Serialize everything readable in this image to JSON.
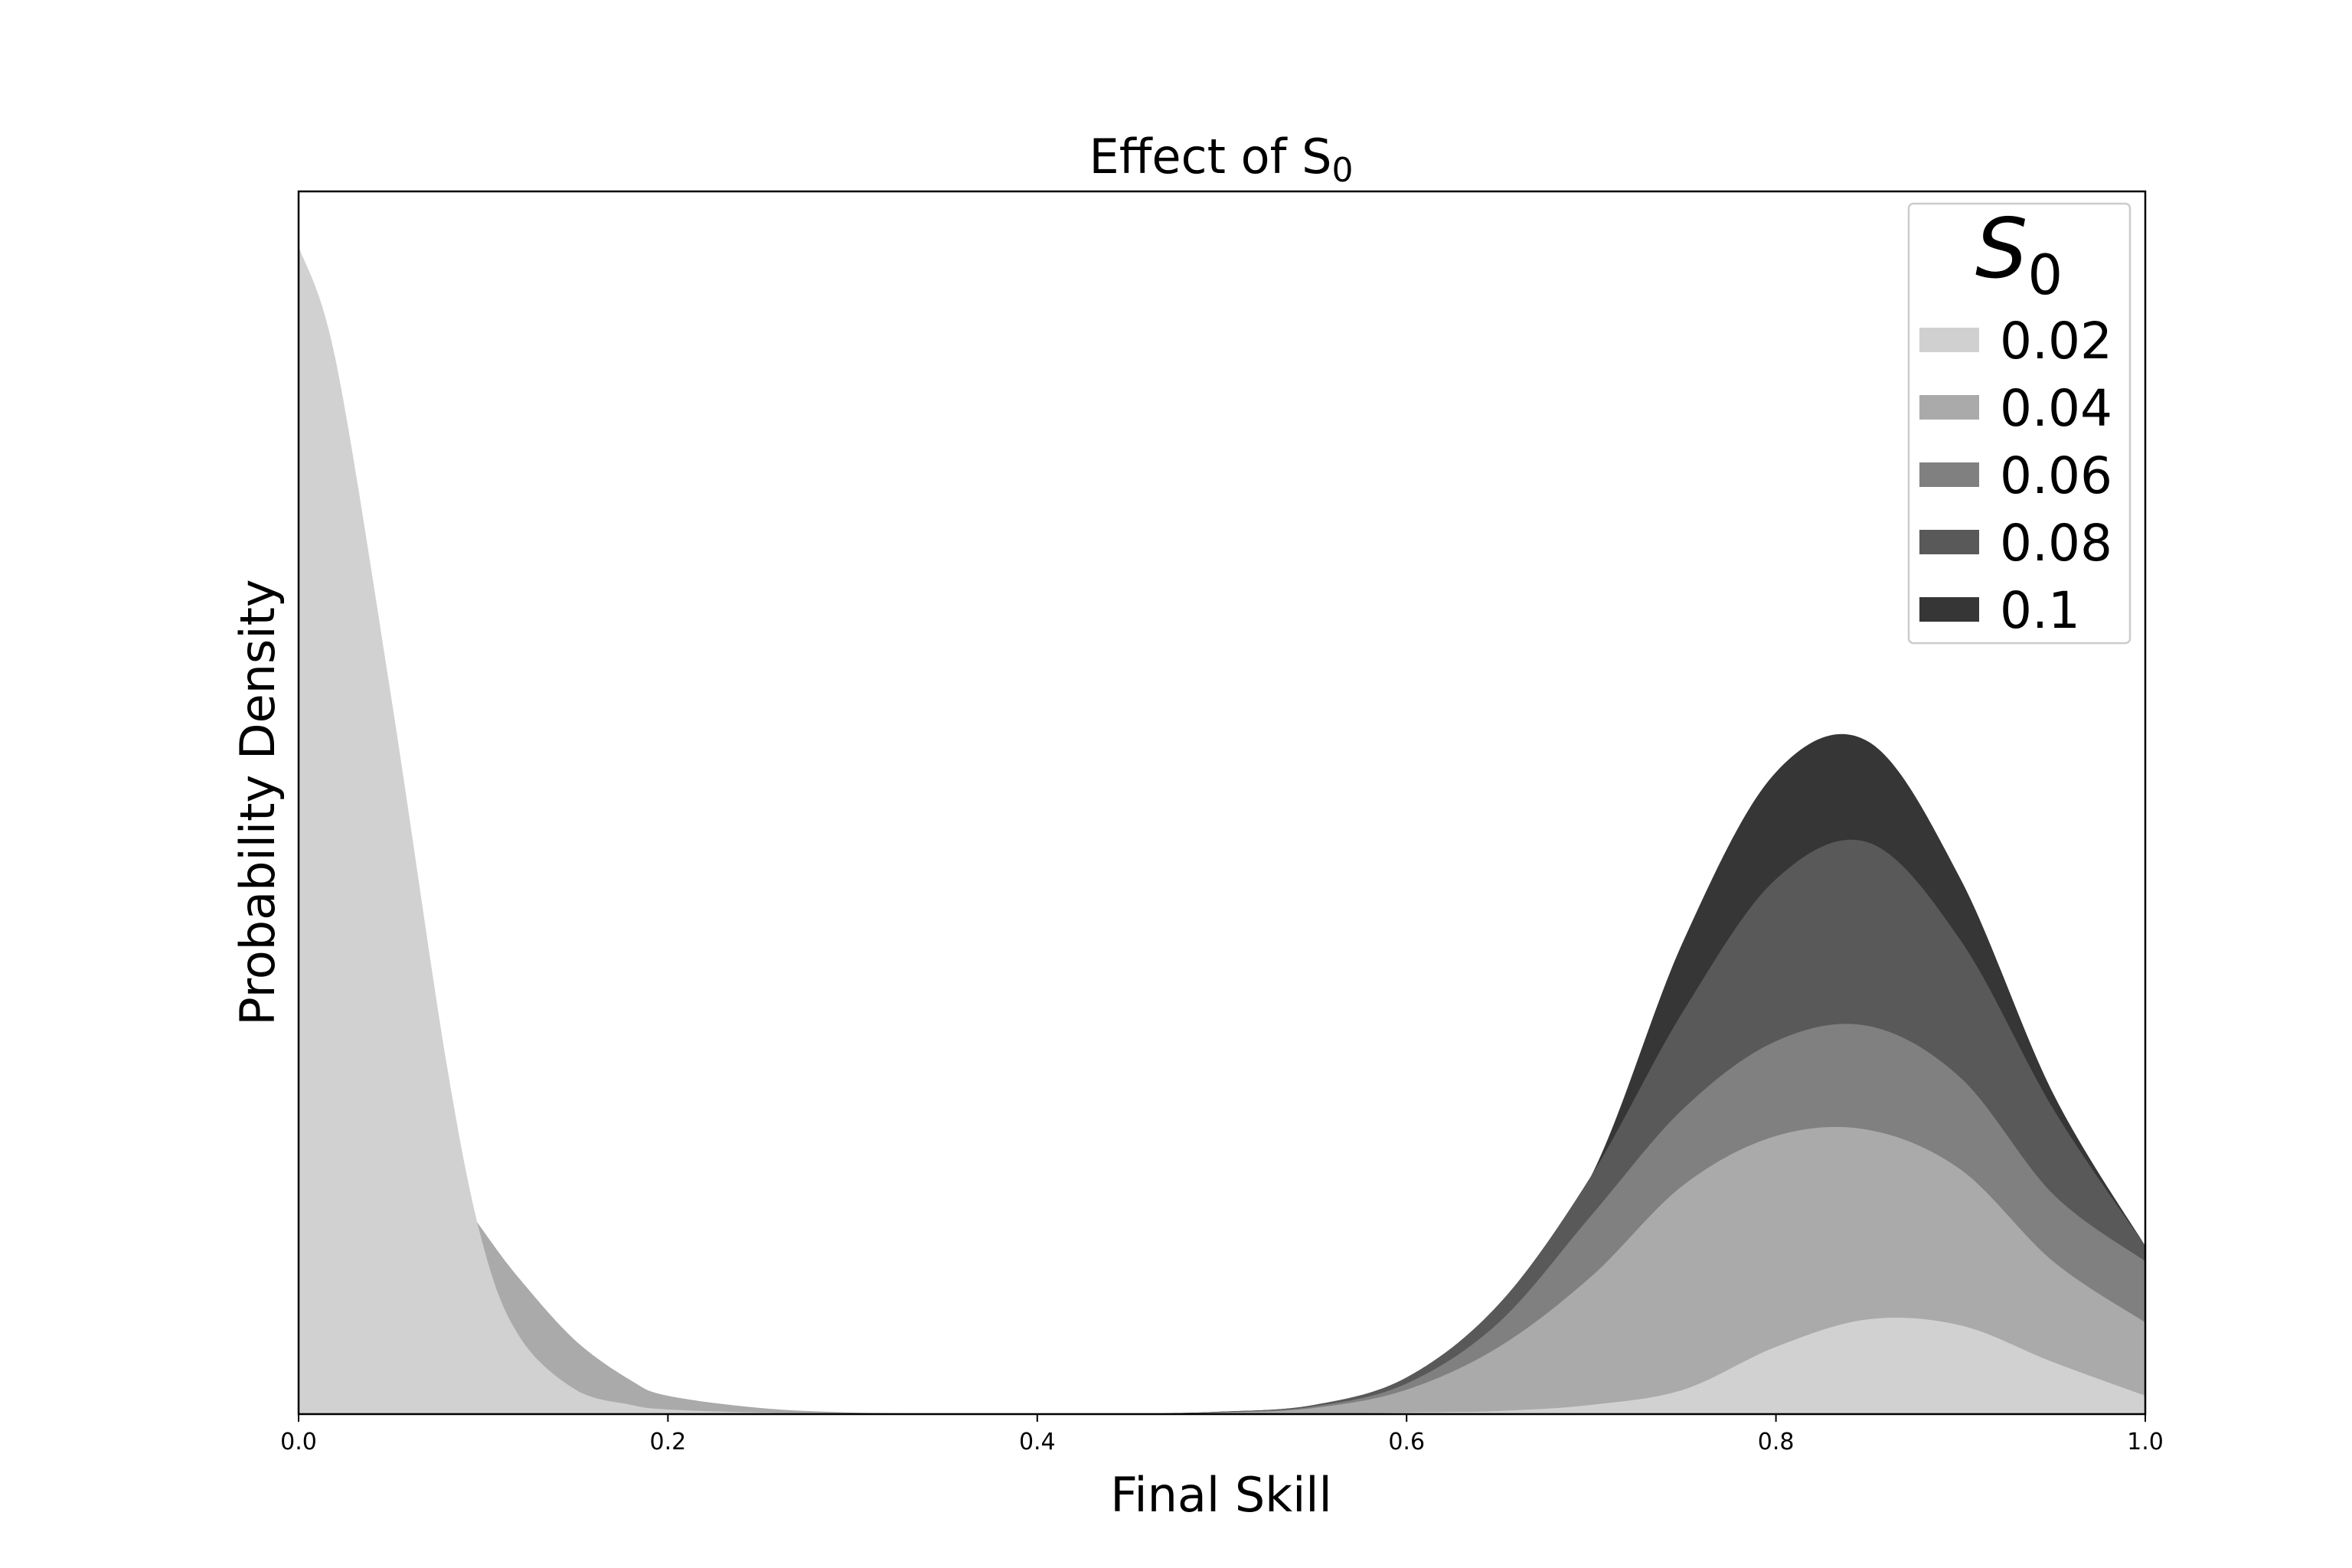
{
  "chart_data": {
    "type": "area",
    "title": "Effect of S",
    "title_subscript": "0",
    "xlabel": "Final Skill",
    "ylabel": "Probability Density",
    "xlim": [
      0.0,
      1.0
    ],
    "ylim": [
      0,
      4.0
    ],
    "x_ticks": [
      "0.0",
      "0.2",
      "0.4",
      "0.6",
      "0.8",
      "1.0"
    ],
    "y_ticks_visible": false,
    "grid": false,
    "legend": {
      "title": "S",
      "title_subscript": "0",
      "position": "top-right"
    },
    "x": [
      0.0,
      0.02,
      0.05,
      0.08,
      0.1,
      0.12,
      0.15,
      0.18,
      0.2,
      0.25,
      0.3,
      0.35,
      0.4,
      0.45,
      0.5,
      0.55,
      0.6,
      0.65,
      0.7,
      0.75,
      0.8,
      0.85,
      0.9,
      0.95,
      1.0
    ],
    "series": [
      {
        "name": "0.02",
        "color": "#d0d0d0",
        "values": [
          3.82,
          3.45,
          2.35,
          1.15,
          0.55,
          0.25,
          0.08,
          0.03,
          0.015,
          0.005,
          0.002,
          0.0,
          0.0,
          0.0,
          0.0,
          0.0,
          0.005,
          0.01,
          0.03,
          0.08,
          0.22,
          0.31,
          0.29,
          0.17,
          0.06
        ]
      },
      {
        "name": "0.04",
        "color": "#aaaaaa",
        "values": [
          1.45,
          1.33,
          1.08,
          0.78,
          0.6,
          0.44,
          0.24,
          0.11,
          0.06,
          0.02,
          0.005,
          0.002,
          0.0,
          0.001,
          0.005,
          0.02,
          0.08,
          0.22,
          0.45,
          0.75,
          0.91,
          0.93,
          0.8,
          0.5,
          0.3
        ]
      },
      {
        "name": "0.06",
        "color": "#808080",
        "values": [
          1.2,
          1.08,
          0.88,
          0.62,
          0.46,
          0.33,
          0.17,
          0.08,
          0.04,
          0.012,
          0.003,
          0.001,
          0.0,
          0.001,
          0.006,
          0.025,
          0.1,
          0.3,
          0.65,
          1.0,
          1.22,
          1.27,
          1.1,
          0.72,
          0.5
        ]
      },
      {
        "name": "0.08",
        "color": "#595959",
        "values": [
          1.1,
          0.98,
          0.8,
          0.56,
          0.41,
          0.29,
          0.14,
          0.06,
          0.03,
          0.01,
          0.002,
          0.0,
          0.0,
          0.001,
          0.008,
          0.03,
          0.12,
          0.36,
          0.78,
          1.32,
          1.75,
          1.87,
          1.55,
          1.0,
          0.55
        ]
      },
      {
        "name": "0.1",
        "color": "#363636",
        "values": [
          1.0,
          0.9,
          0.72,
          0.5,
          0.37,
          0.26,
          0.12,
          0.05,
          0.025,
          0.008,
          0.002,
          0.0,
          0.0,
          0.001,
          0.008,
          0.03,
          0.12,
          0.36,
          0.78,
          1.55,
          2.1,
          2.2,
          1.75,
          1.05,
          0.55
        ]
      }
    ]
  }
}
